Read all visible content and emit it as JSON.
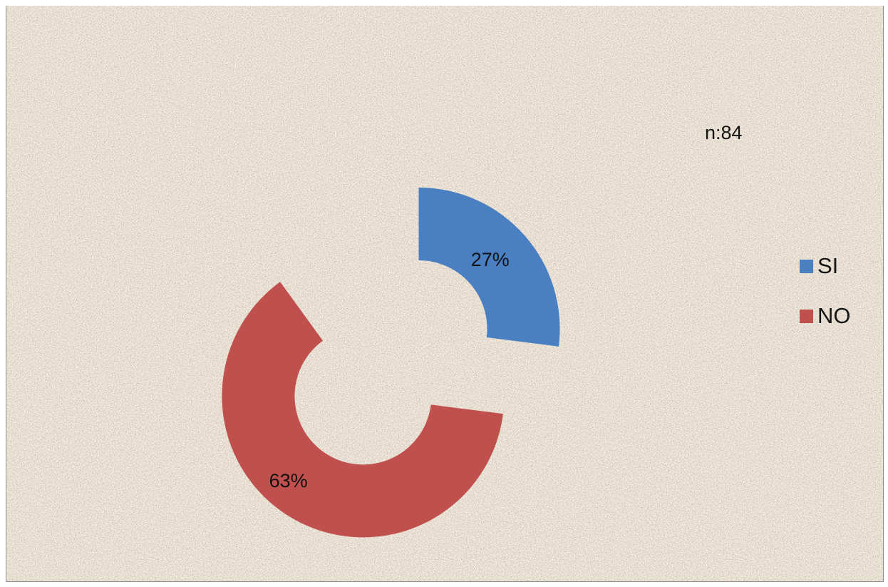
{
  "chart_data": {
    "type": "pie",
    "subtype": "exploded-donut",
    "categories": [
      "SI",
      "NO"
    ],
    "values": [
      27,
      63
    ],
    "labels": [
      "27%",
      "63%"
    ],
    "colors": [
      "#4a7fc2",
      "#c0504d"
    ],
    "legend_position": "right",
    "annotation": "n:84",
    "background": "gravel-texture"
  }
}
